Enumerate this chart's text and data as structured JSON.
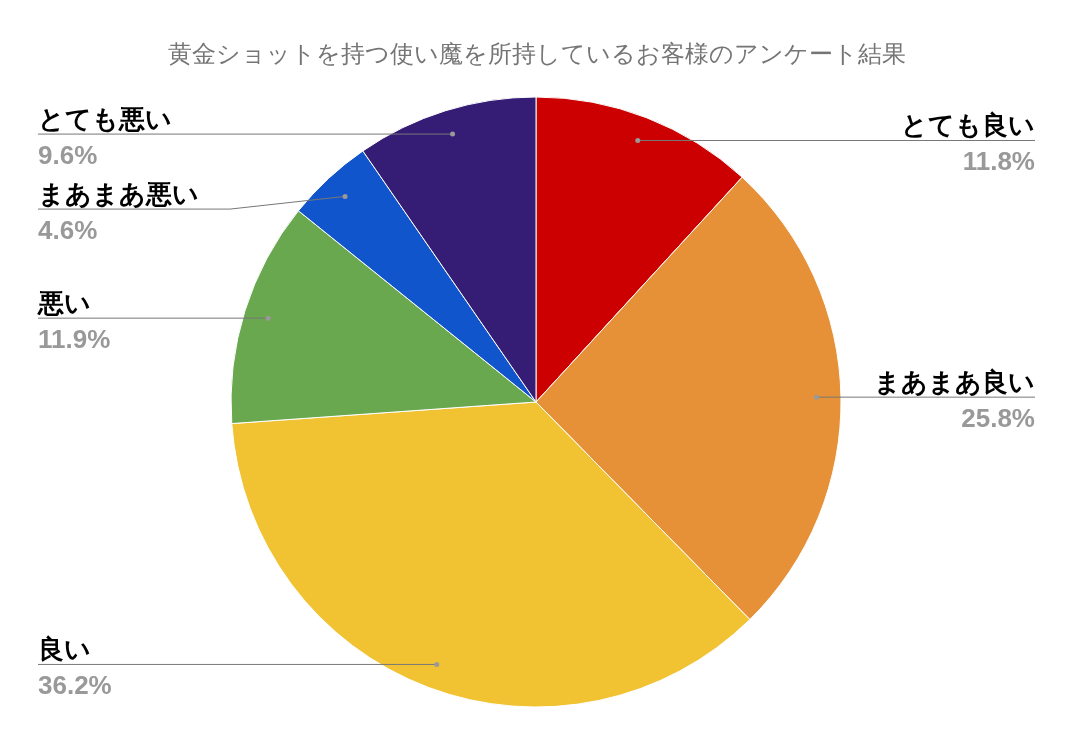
{
  "chart_data": {
    "type": "pie",
    "title": "黄金ショットを持つ使い魔を所持しているお客様のアンケート結果",
    "categories": [
      "とても良い",
      "まあまあ良い",
      "良い",
      "悪い",
      "まあまあ悪い",
      "とても悪い"
    ],
    "values": [
      11.8,
      25.8,
      36.2,
      11.9,
      4.6,
      9.6
    ],
    "colors": [
      "#cc0000",
      "#e69138",
      "#f1c232",
      "#6aa84f",
      "#1155cc",
      "#351c75"
    ],
    "value_labels": [
      "11.8%",
      "25.8%",
      "36.2%",
      "11.9%",
      "4.6%",
      "9.6%"
    ]
  }
}
